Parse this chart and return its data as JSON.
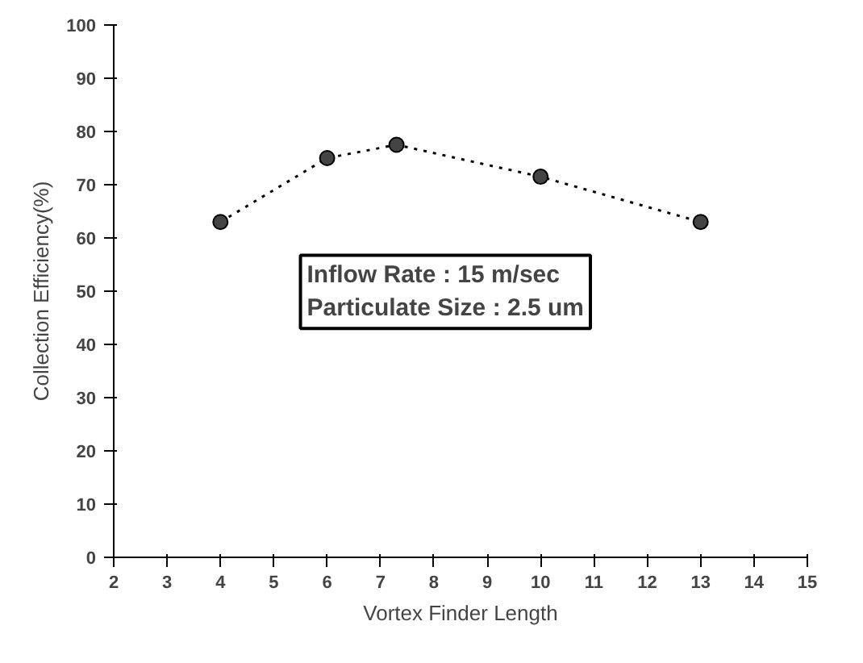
{
  "chart_data": {
    "type": "line",
    "xlabel": "Vortex Finder Length",
    "ylabel": "Collection Efficiency(%)",
    "x": [
      4,
      6,
      7.3,
      10,
      13
    ],
    "series": [
      {
        "color": "#000000",
        "values": [
          63,
          75,
          77.5,
          71.5,
          63
        ]
      }
    ],
    "xlim": [
      2,
      15
    ],
    "xticks": [
      2,
      3,
      4,
      5,
      6,
      7,
      8,
      9,
      10,
      11,
      12,
      13,
      14,
      15
    ],
    "ylim": [
      0,
      100
    ],
    "yticks": [
      0,
      10,
      20,
      30,
      40,
      50,
      60,
      70,
      80,
      90,
      100
    ],
    "annotations": [
      "Inflow Rate : 15 m/sec",
      "Particulate Size : 2.5 um"
    ],
    "marker": "circle",
    "line_style": "dotted",
    "grid": false
  }
}
